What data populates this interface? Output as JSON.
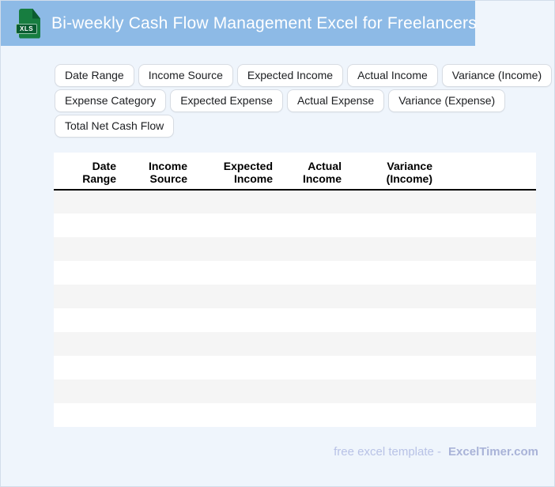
{
  "page": {
    "background_color": "#eff5fc",
    "border_color": "#d2ddeb"
  },
  "header": {
    "title": "Bi-weekly Cash Flow Management Excel for Freelancers",
    "bar_color": "#8dbae6",
    "icon_label": "XLS",
    "icon_color": "#177d40"
  },
  "tags": [
    "Date Range",
    "Income Source",
    "Expected Income",
    "Actual Income",
    "Variance (Income)",
    "Expense Category",
    "Expected Expense",
    "Actual Expense",
    "Variance (Expense)",
    "Total Net Cash Flow"
  ],
  "table": {
    "columns": [
      "Date\nRange",
      "Income\nSource",
      "Expected\nIncome",
      "Actual\nIncome",
      "Variance\n(Income)"
    ],
    "empty_row_count": 10,
    "stripe_color": "#f5f5f5"
  },
  "footer": {
    "note": "free excel template -",
    "brand": "ExcelTimer.com"
  }
}
